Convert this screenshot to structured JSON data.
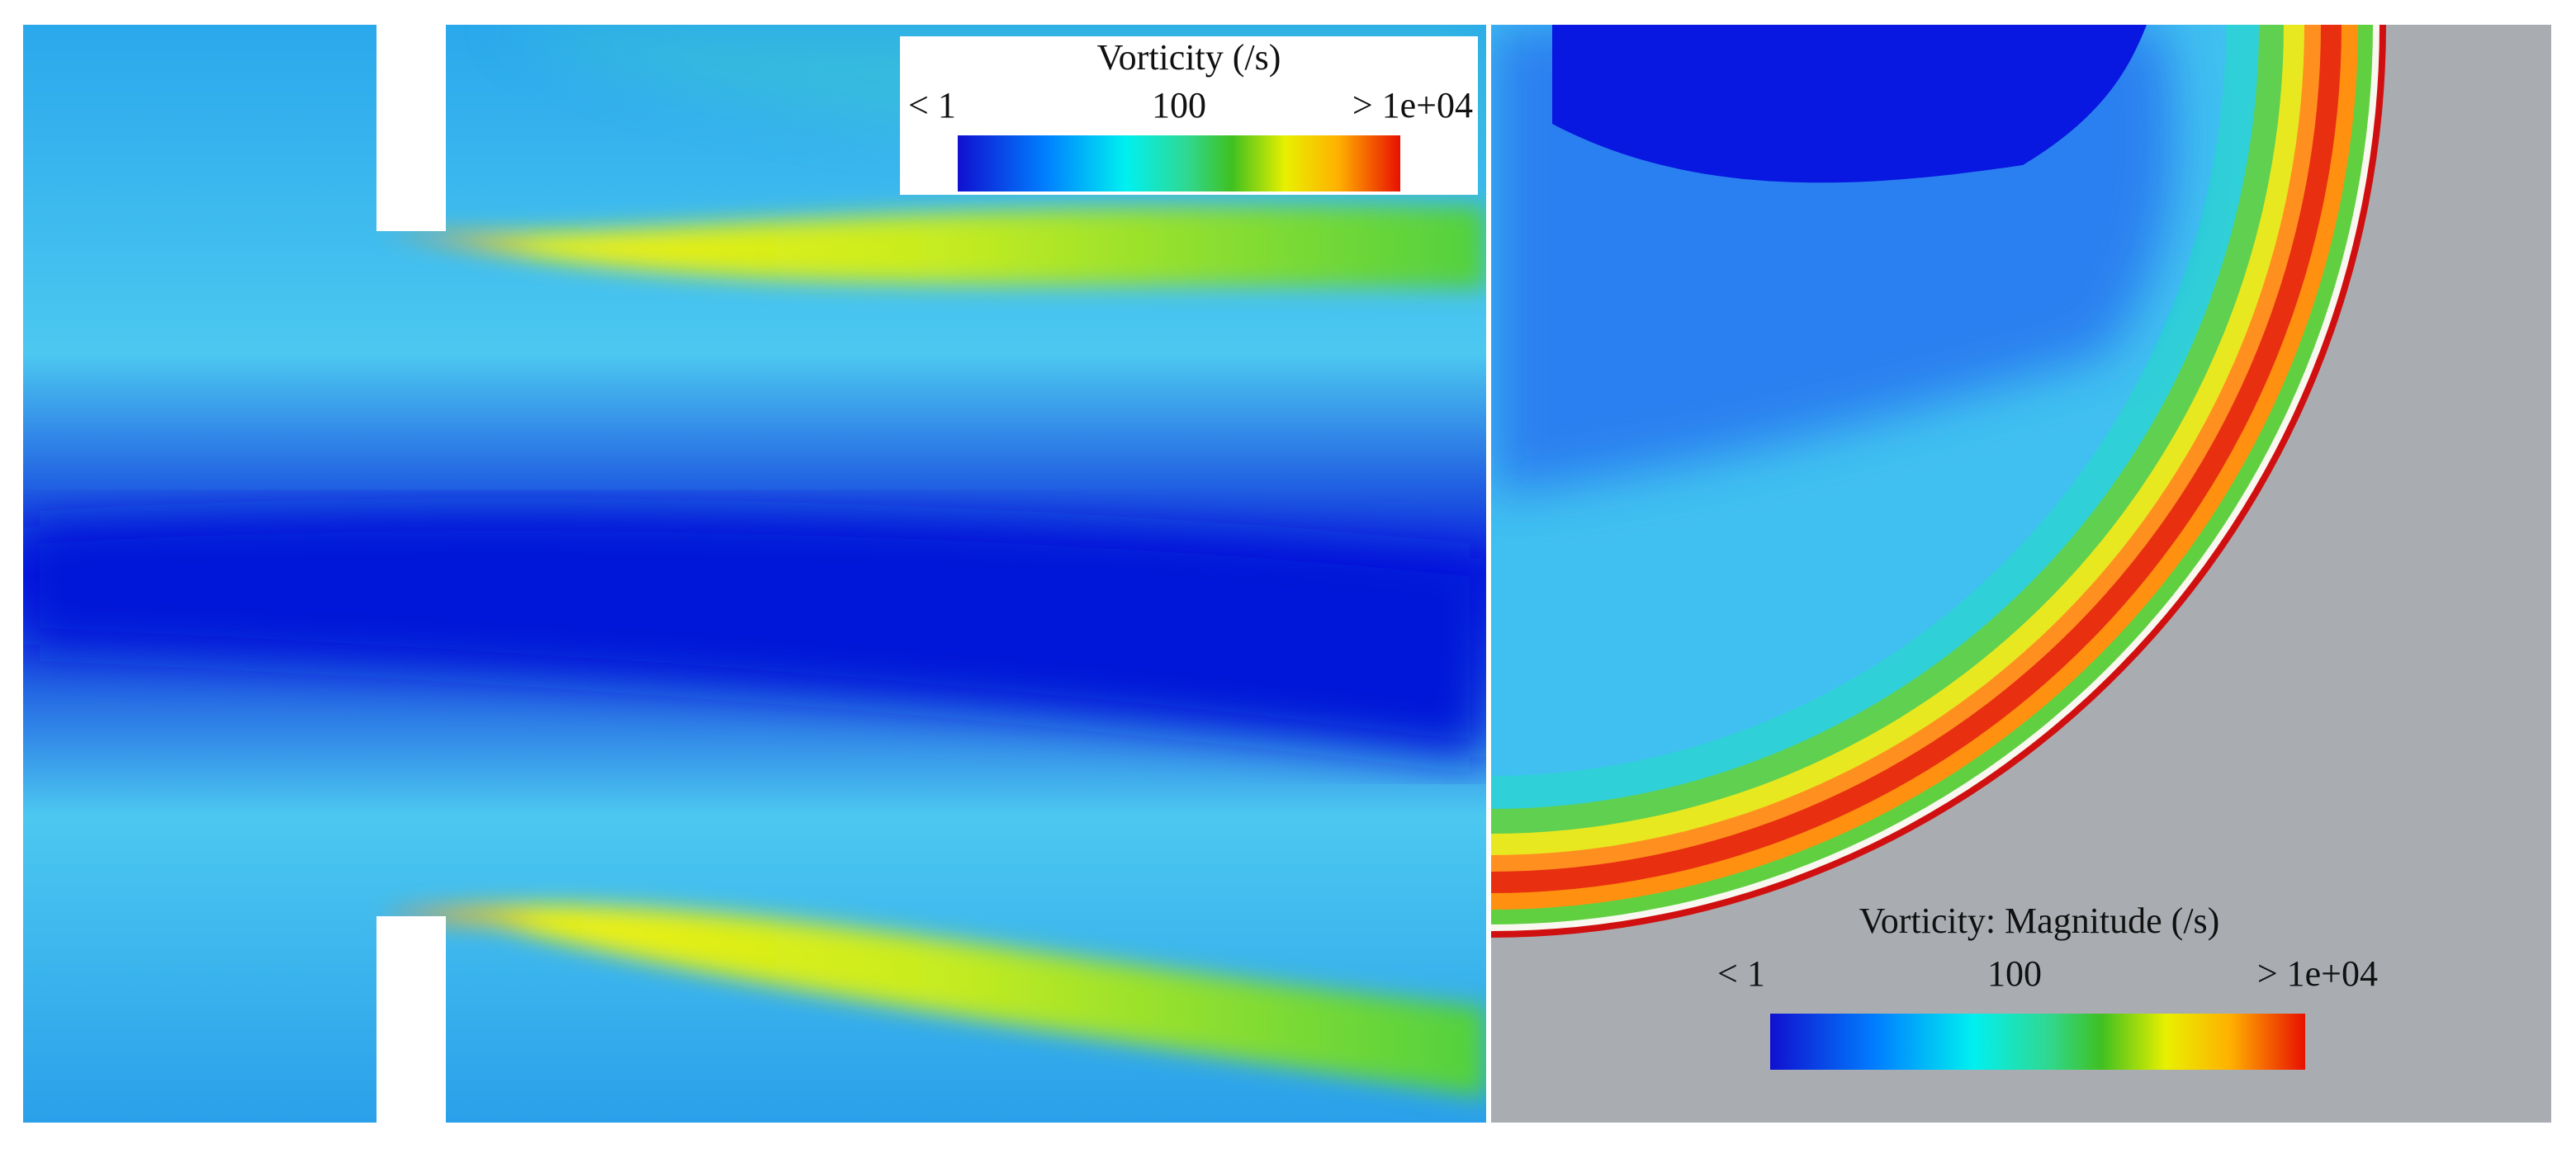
{
  "left_panel": {
    "legend": {
      "title": "Vorticity (/s)",
      "labels": [
        "< 1",
        "100",
        "> 1e+04"
      ]
    }
  },
  "right_panel": {
    "legend": {
      "title": "Vorticity: Magnitude (/s)",
      "labels": [
        "< 1",
        "100",
        "> 1e+04"
      ]
    }
  }
}
